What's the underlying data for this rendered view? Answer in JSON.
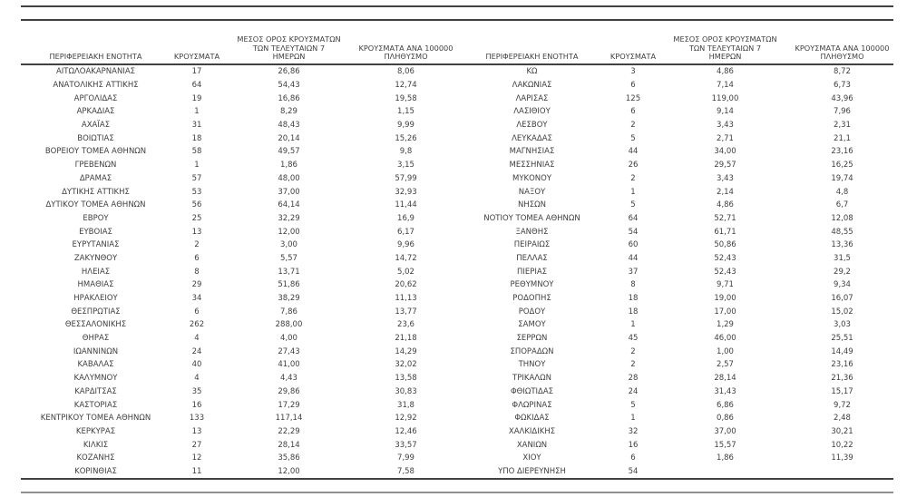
{
  "page": {
    "background": "#ffffff",
    "text_color": "#3f3f3f",
    "rule_color_dark": "#414141",
    "rule_color_light": "#909090"
  },
  "table": {
    "columns": [
      {
        "key": "region",
        "label_lines": [
          "ΠΕΡΙΦΕΡΕΙΑΚΗ ΕΝΟΤΗΤΑ"
        ]
      },
      {
        "key": "cases",
        "label_lines": [
          "ΚΡΟΥΣΜΑΤΑ"
        ]
      },
      {
        "key": "avg7",
        "label_lines": [
          "ΜΕΣΟΣ ΟΡΟΣ ΚΡΟΥΣΜΑΤΩΝ",
          "ΤΩΝ ΤΕΛΕΥΤΑΙΩΝ 7",
          "ΗΜΕΡΩΝ"
        ]
      },
      {
        "key": "per100k",
        "label_lines": [
          "ΚΡΟΥΣΜΑΤΑ ΑΝΑ 100000",
          "ΠΛΗΘΥΣΜΟ"
        ]
      }
    ],
    "left_rows": [
      [
        "ΑΙΤΩΛΟΑΚΑΡΝΑΝΙΑΣ",
        "17",
        "26,86",
        "8,06"
      ],
      [
        "ΑΝΑΤΟΛΙΚΗΣ ΑΤΤΙΚΗΣ",
        "64",
        "54,43",
        "12,74"
      ],
      [
        "ΑΡΓΟΛΙΔΑΣ",
        "19",
        "16,86",
        "19,58"
      ],
      [
        "ΑΡΚΑΔΙΑΣ",
        "1",
        "8,29",
        "1,15"
      ],
      [
        "ΑΧΑΪΑΣ",
        "31",
        "48,43",
        "9,99"
      ],
      [
        "ΒΟΙΩΤΙΑΣ",
        "18",
        "20,14",
        "15,26"
      ],
      [
        "ΒΟΡΕΙΟΥ ΤΟΜΕΑ ΑΘΗΝΩΝ",
        "58",
        "49,57",
        "9,8"
      ],
      [
        "ΓΡΕΒΕΝΩΝ",
        "1",
        "1,86",
        "3,15"
      ],
      [
        "ΔΡΑΜΑΣ",
        "57",
        "48,00",
        "57,99"
      ],
      [
        "ΔΥΤΙΚΗΣ ΑΤΤΙΚΗΣ",
        "53",
        "37,00",
        "32,93"
      ],
      [
        "ΔΥΤΙΚΟΥ ΤΟΜΕΑ ΑΘΗΝΩΝ",
        "56",
        "64,14",
        "11,44"
      ],
      [
        "ΕΒΡΟΥ",
        "25",
        "32,29",
        "16,9"
      ],
      [
        "ΕΥΒΟΙΑΣ",
        "13",
        "12,00",
        "6,17"
      ],
      [
        "ΕΥΡΥΤΑΝΙΑΣ",
        "2",
        "3,00",
        "9,96"
      ],
      [
        "ΖΑΚΥΝΘΟΥ",
        "6",
        "5,57",
        "14,72"
      ],
      [
        "ΗΛΕΙΑΣ",
        "8",
        "13,71",
        "5,02"
      ],
      [
        "ΗΜΑΘΙΑΣ",
        "29",
        "51,86",
        "20,62"
      ],
      [
        "ΗΡΑΚΛΕΙΟΥ",
        "34",
        "38,29",
        "11,13"
      ],
      [
        "ΘΕΣΠΡΩΤΙΑΣ",
        "6",
        "7,86",
        "13,77"
      ],
      [
        "ΘΕΣΣΑΛΟΝΙΚΗΣ",
        "262",
        "288,00",
        "23,6"
      ],
      [
        "ΘΗΡΑΣ",
        "4",
        "4,00",
        "21,18"
      ],
      [
        "ΙΩΑΝΝΙΝΩΝ",
        "24",
        "27,43",
        "14,29"
      ],
      [
        "ΚΑΒΑΛΑΣ",
        "40",
        "41,00",
        "32,02"
      ],
      [
        "ΚΑΛΥΜΝΟΥ",
        "4",
        "4,43",
        "13,58"
      ],
      [
        "ΚΑΡΔΙΤΣΑΣ",
        "35",
        "29,86",
        "30,83"
      ],
      [
        "ΚΑΣΤΟΡΙΑΣ",
        "16",
        "17,29",
        "31,8"
      ],
      [
        "ΚΕΝΤΡΙΚΟΥ ΤΟΜΕΑ ΑΘΗΝΩΝ",
        "133",
        "117,14",
        "12,92"
      ],
      [
        "ΚΕΡΚΥΡΑΣ",
        "13",
        "22,29",
        "12,46"
      ],
      [
        "ΚΙΛΚΙΣ",
        "27",
        "28,14",
        "33,57"
      ],
      [
        "ΚΟΖΑΝΗΣ",
        "12",
        "35,86",
        "7,99"
      ],
      [
        "ΚΟΡΙΝΘΙΑΣ",
        "11",
        "12,00",
        "7,58"
      ]
    ],
    "right_rows": [
      [
        "ΚΩ",
        "3",
        "4,86",
        "8,72"
      ],
      [
        "ΛΑΚΩΝΙΑΣ",
        "6",
        "7,14",
        "6,73"
      ],
      [
        "ΛΑΡΙΣΑΣ",
        "125",
        "119,00",
        "43,96"
      ],
      [
        "ΛΑΣΙΘΙΟΥ",
        "6",
        "9,14",
        "7,96"
      ],
      [
        "ΛΕΣΒΟΥ",
        "2",
        "3,43",
        "2,31"
      ],
      [
        "ΛΕΥΚΑΔΑΣ",
        "5",
        "2,71",
        "21,1"
      ],
      [
        "ΜΑΓΝΗΣΙΑΣ",
        "44",
        "34,00",
        "23,16"
      ],
      [
        "ΜΕΣΣΗΝΙΑΣ",
        "26",
        "29,57",
        "16,25"
      ],
      [
        "ΜΥΚΟΝΟΥ",
        "2",
        "3,43",
        "19,74"
      ],
      [
        "ΝΑΞΟΥ",
        "1",
        "2,14",
        "4,8"
      ],
      [
        "ΝΗΣΩΝ",
        "5",
        "4,86",
        "6,7"
      ],
      [
        "ΝΟΤΙΟΥ ΤΟΜΕΑ ΑΘΗΝΩΝ",
        "64",
        "52,71",
        "12,08"
      ],
      [
        "ΞΑΝΘΗΣ",
        "54",
        "61,71",
        "48,55"
      ],
      [
        "ΠΕΙΡΑΙΩΣ",
        "60",
        "50,86",
        "13,36"
      ],
      [
        "ΠΕΛΛΑΣ",
        "44",
        "52,43",
        "31,5"
      ],
      [
        "ΠΙΕΡΙΑΣ",
        "37",
        "52,43",
        "29,2"
      ],
      [
        "ΡΕΘΥΜΝΟΥ",
        "8",
        "9,71",
        "9,34"
      ],
      [
        "ΡΟΔΟΠΗΣ",
        "18",
        "19,00",
        "16,07"
      ],
      [
        "ΡΟΔΟΥ",
        "18",
        "17,00",
        "15,02"
      ],
      [
        "ΣΑΜΟΥ",
        "1",
        "1,29",
        "3,03"
      ],
      [
        "ΣΕΡΡΩΝ",
        "45",
        "46,00",
        "25,51"
      ],
      [
        "ΣΠΟΡΑΔΩΝ",
        "2",
        "1,00",
        "14,49"
      ],
      [
        "ΤΗΝΟΥ",
        "2",
        "2,57",
        "23,16"
      ],
      [
        "ΤΡΙΚΑΛΩΝ",
        "28",
        "28,14",
        "21,36"
      ],
      [
        "ΦΘΙΩΤΙΔΑΣ",
        "24",
        "31,43",
        "15,17"
      ],
      [
        "ΦΛΩΡΙΝΑΣ",
        "5",
        "6,86",
        "9,72"
      ],
      [
        "ΦΩΚΙΔΑΣ",
        "1",
        "0,86",
        "2,48"
      ],
      [
        "ΧΑΛΚΙΔΙΚΗΣ",
        "32",
        "37,00",
        "30,21"
      ],
      [
        "ΧΑΝΙΩΝ",
        "16",
        "15,57",
        "10,22"
      ],
      [
        "ΧΙΟΥ",
        "6",
        "1,86",
        "11,39"
      ],
      [
        "ΥΠΟ ΔΙΕΡΕΥΝΗΣΗ",
        "54",
        "",
        ""
      ]
    ]
  }
}
